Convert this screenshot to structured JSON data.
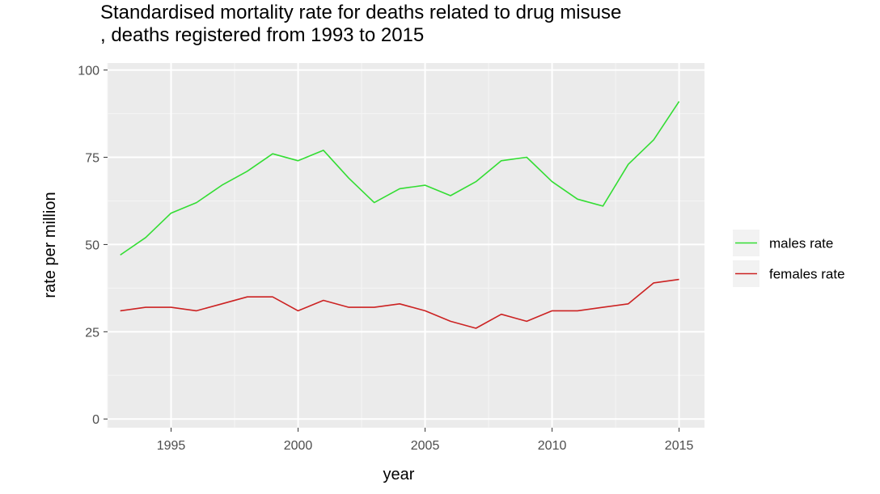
{
  "chart_data": {
    "type": "line",
    "title_line1": "Standardised mortality rate for deaths related to drug misuse",
    "title_line2": ", deaths registered from 1993 to 2015",
    "xlabel": "year",
    "ylabel": "rate per million",
    "xlim": [
      1992.5,
      2016.0
    ],
    "ylim": [
      -2.5,
      102
    ],
    "x_ticks": [
      1995,
      2000,
      2005,
      2010,
      2015
    ],
    "y_ticks": [
      0,
      25,
      50,
      75,
      100
    ],
    "grid": true,
    "legend_position": "right",
    "x": [
      1993,
      1994,
      1995,
      1996,
      1997,
      1998,
      1999,
      2000,
      2001,
      2002,
      2003,
      2004,
      2005,
      2006,
      2007,
      2008,
      2009,
      2010,
      2011,
      2012,
      2013,
      2014,
      2015
    ],
    "series": [
      {
        "name": "males rate",
        "color": "#33dd33",
        "values": [
          47,
          52,
          59,
          62,
          67,
          71,
          76,
          74,
          77,
          69,
          62,
          66,
          67,
          64,
          68,
          74,
          75,
          68,
          63,
          61,
          73,
          80,
          91
        ]
      },
      {
        "name": "females rate",
        "color": "#cc2222",
        "values": [
          31,
          32,
          32,
          31,
          33,
          35,
          35,
          31,
          34,
          32,
          32,
          33,
          31,
          28,
          26,
          30,
          28,
          31,
          31,
          32,
          33,
          39,
          40
        ]
      }
    ]
  }
}
